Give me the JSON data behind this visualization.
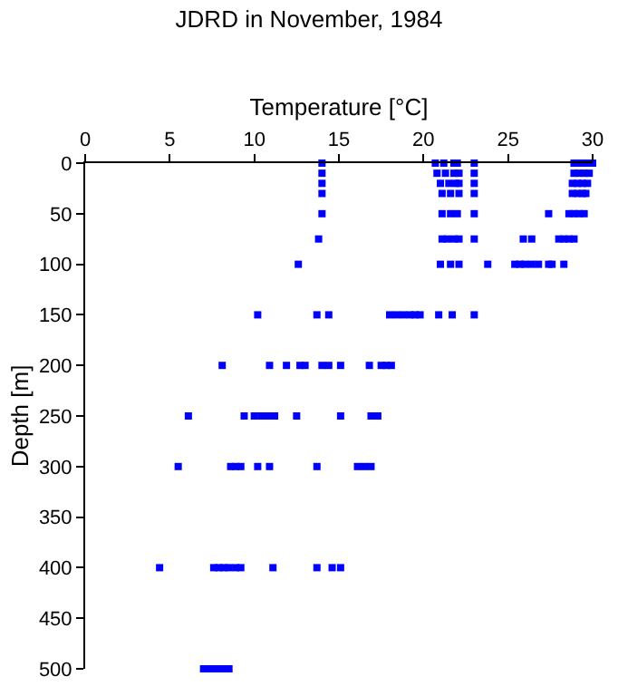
{
  "chart_data": {
    "type": "scatter",
    "title": "JDRD in November, 1984",
    "xlabel": "Temperature [°C]",
    "ylabel": "Depth [m]",
    "x": [
      14.0,
      20.7,
      21.2,
      21.8,
      22.0,
      23.0,
      28.9,
      29.2,
      29.5,
      29.8,
      30.0,
      14.0,
      20.8,
      21.3,
      21.8,
      22.1,
      23.0,
      28.9,
      29.2,
      29.5,
      29.8,
      14.0,
      21.0,
      21.5,
      21.9,
      22.1,
      23.0,
      28.8,
      29.1,
      29.4,
      29.7,
      14.0,
      21.1,
      21.6,
      22.1,
      23.0,
      28.8,
      29.1,
      29.4,
      29.6,
      14.0,
      21.1,
      21.6,
      22.0,
      23.0,
      27.4,
      28.6,
      28.9,
      29.2,
      29.5,
      13.8,
      21.1,
      21.4,
      21.8,
      22.1,
      23.0,
      25.9,
      26.4,
      28.0,
      28.3,
      28.6,
      28.9,
      12.6,
      21.0,
      21.6,
      22.1,
      23.8,
      25.4,
      25.7,
      26.0,
      26.4,
      26.8,
      27.4,
      27.6,
      28.3,
      10.2,
      13.7,
      14.4,
      18.0,
      18.4,
      18.8,
      19.2,
      19.5,
      19.8,
      20.9,
      21.7,
      23.0,
      8.1,
      10.9,
      11.9,
      12.7,
      13.0,
      14.0,
      14.4,
      15.1,
      16.8,
      17.5,
      17.8,
      18.1,
      6.1,
      9.4,
      10.0,
      10.4,
      10.8,
      11.2,
      12.5,
      15.1,
      16.9,
      17.3,
      5.5,
      8.6,
      8.9,
      9.2,
      10.2,
      10.9,
      13.7,
      16.1,
      16.5,
      16.9,
      4.4,
      7.6,
      7.9,
      8.2,
      8.5,
      8.9,
      9.2,
      11.1,
      13.7,
      14.6,
      15.1,
      7.0,
      7.3,
      7.6,
      7.9,
      8.2,
      8.5
    ],
    "values": [
      0,
      0,
      0,
      0,
      0,
      0,
      0,
      0,
      0,
      0,
      0,
      10,
      10,
      10,
      10,
      10,
      10,
      10,
      10,
      10,
      10,
      20,
      20,
      20,
      20,
      20,
      20,
      20,
      20,
      20,
      20,
      30,
      30,
      30,
      30,
      30,
      30,
      30,
      30,
      30,
      50,
      50,
      50,
      50,
      50,
      50,
      50,
      50,
      50,
      50,
      75,
      75,
      75,
      75,
      75,
      75,
      75,
      75,
      75,
      75,
      75,
      75,
      100,
      100,
      100,
      100,
      100,
      100,
      100,
      100,
      100,
      100,
      100,
      100,
      100,
      150,
      150,
      150,
      150,
      150,
      150,
      150,
      150,
      150,
      150,
      150,
      150,
      200,
      200,
      200,
      200,
      200,
      200,
      200,
      200,
      200,
      200,
      200,
      200,
      250,
      250,
      250,
      250,
      250,
      250,
      250,
      250,
      250,
      250,
      300,
      300,
      300,
      300,
      300,
      300,
      300,
      300,
      300,
      300,
      400,
      400,
      400,
      400,
      400,
      400,
      400,
      400,
      400,
      400,
      400,
      500,
      500,
      500,
      500,
      500,
      500
    ],
    "color": "#0000ff",
    "marker": "square",
    "xlim": [
      0,
      30
    ],
    "xticks": [
      0,
      5,
      10,
      15,
      20,
      25,
      30
    ],
    "ylim": [
      500,
      0
    ],
    "yticks": [
      0,
      50,
      100,
      150,
      200,
      250,
      300,
      350,
      400,
      450,
      500
    ]
  }
}
